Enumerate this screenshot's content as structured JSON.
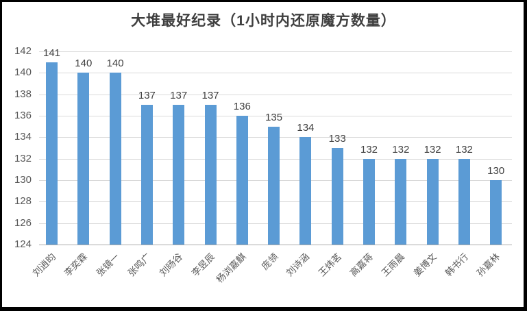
{
  "window": {
    "background": "#ffffff",
    "border_color": "#000000"
  },
  "chart_data": {
    "type": "bar",
    "title": "大堆最好纪录（1小时内还原魔方数量）",
    "categories": [
      "刘逍昀",
      "李奕霖",
      "张镜一",
      "张鸣广",
      "刘旸谷",
      "李昱辰",
      "杨浏嘉麒",
      "庞领",
      "刘诗涵",
      "王炜茗",
      "高嘉蒋",
      "王雨晨",
      "姜博文",
      "韩书行",
      "孙嘉林"
    ],
    "values": [
      141,
      140,
      140,
      137,
      137,
      137,
      136,
      135,
      134,
      133,
      132,
      132,
      132,
      132,
      130
    ],
    "data_labels": [
      141,
      140,
      140,
      137,
      137,
      137,
      136,
      135,
      134,
      133,
      132,
      132,
      132,
      132,
      130
    ],
    "xlabel": "",
    "ylabel": "",
    "ylim": [
      124,
      142
    ],
    "yticks": [
      124,
      126,
      128,
      130,
      132,
      134,
      136,
      138,
      140,
      142
    ],
    "grid": true,
    "legend": "none",
    "bar_color": "#5b9bd5",
    "gridline_color": "#d9d9d9",
    "axis_line_color": "#ababab",
    "tick_label_color": "#595959",
    "value_label_color": "#404040",
    "title_color": "#3f3f3f"
  }
}
